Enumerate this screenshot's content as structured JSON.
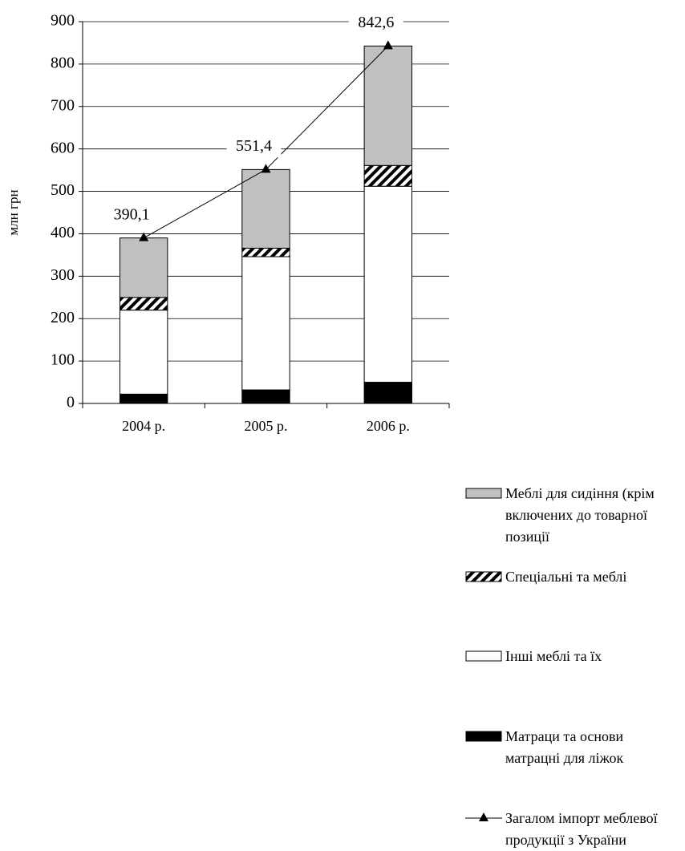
{
  "chart_data": {
    "type": "stacked_bar_line",
    "y_label": "млн грн",
    "categories": [
      "2004 р.",
      "2005 р.",
      "2006 р."
    ],
    "series": [
      {
        "name": "Матраци та основи матрацні для ліжок",
        "color": "#000000",
        "values": [
          22,
          32,
          50
        ]
      },
      {
        "name": "Інші меблі та їх",
        "color": "#ffffff",
        "values": [
          198,
          314,
          462
        ]
      },
      {
        "name": "Спеціальні та меблі",
        "color": "#000000",
        "hatch": true,
        "values": [
          30,
          20,
          49
        ]
      },
      {
        "name": "Меблі для сидіння (крім включених до товарної позиції",
        "color": "#c0c0c0",
        "values": [
          140.1,
          185.4,
          281.6
        ]
      }
    ],
    "line": {
      "name": "Загалом імпорт меблевої продукції з України",
      "color": "#000000",
      "values": [
        390.1,
        551.4,
        842.6
      ],
      "value_labels": [
        "390,1",
        "551,4",
        "842,6"
      ]
    },
    "ylim": [
      0,
      900
    ],
    "yticks": [
      0,
      100,
      200,
      300,
      400,
      500,
      600,
      700,
      800,
      900
    ],
    "grid": true
  }
}
